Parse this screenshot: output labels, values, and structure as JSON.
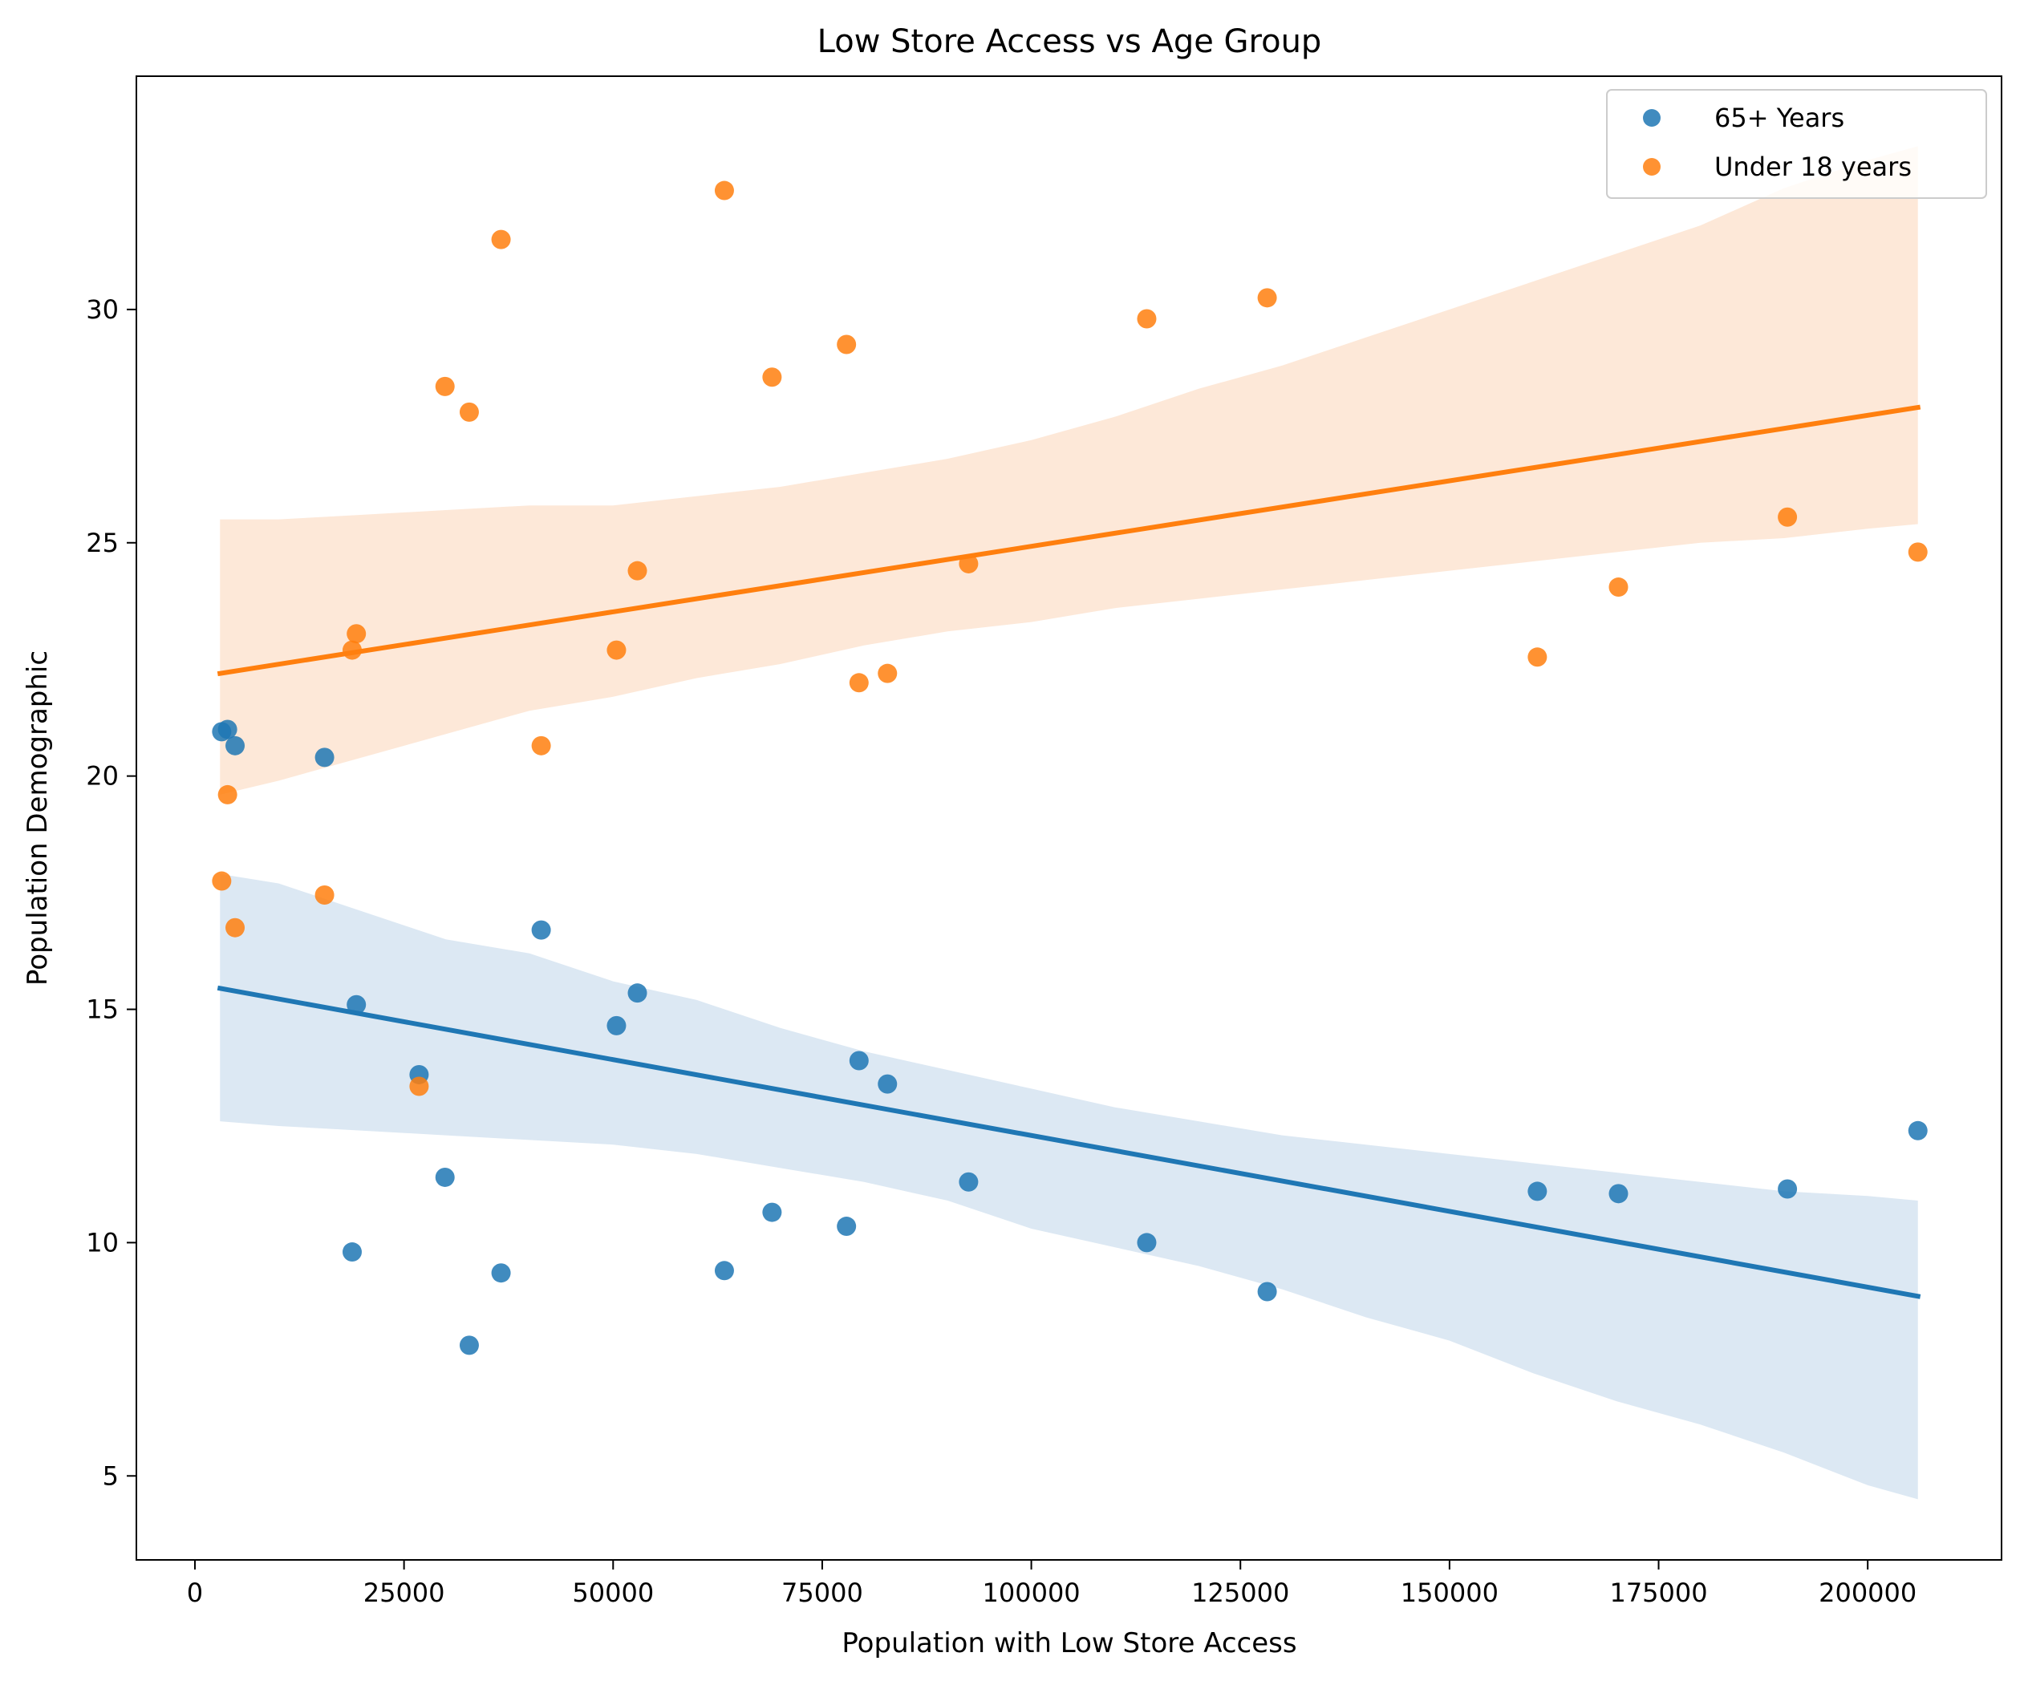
{
  "chart_data": {
    "type": "scatter",
    "title": "Low Store Access vs Age Group",
    "xlabel": "Population with Low Store Access",
    "ylabel": "Population Demographic",
    "xlim": [
      -7000,
      216000
    ],
    "ylim": [
      3.2,
      35.0
    ],
    "xticks": [
      0,
      25000,
      50000,
      75000,
      100000,
      125000,
      150000,
      175000,
      200000
    ],
    "yticks": [
      5,
      10,
      15,
      20,
      25,
      30
    ],
    "grid": false,
    "legend_position": "top-right",
    "series": [
      {
        "name": "65+ Years",
        "color": "#1f77b4",
        "band_color": "#dce8f3",
        "x": [
          3200,
          3900,
          4800,
          15500,
          18800,
          19300,
          26800,
          29900,
          32800,
          36600,
          41400,
          50400,
          52900,
          63300,
          69000,
          77900,
          79400,
          82800,
          92500,
          113800,
          128200,
          160500,
          170200,
          190400,
          206000
        ],
        "y": [
          20.95,
          21.0,
          20.65,
          20.4,
          9.8,
          15.1,
          13.6,
          11.4,
          7.8,
          9.35,
          16.7,
          14.65,
          15.35,
          9.4,
          10.65,
          10.35,
          13.9,
          13.4,
          11.3,
          10.0,
          8.95,
          11.1,
          11.05,
          11.15,
          12.4
        ],
        "fit": {
          "x": [
            3000,
            206000
          ],
          "y": [
            15.45,
            8.85
          ]
        },
        "band": {
          "x": [
            3000,
            10000,
            20000,
            30000,
            40000,
            50000,
            60000,
            70000,
            80000,
            90000,
            100000,
            110000,
            120000,
            130000,
            140000,
            150000,
            160000,
            170000,
            180000,
            190000,
            200000,
            206000
          ],
          "upper": [
            17.9,
            17.7,
            17.1,
            16.5,
            16.2,
            15.6,
            15.2,
            14.6,
            14.1,
            13.7,
            13.3,
            12.9,
            12.6,
            12.3,
            12.1,
            11.9,
            11.7,
            11.5,
            11.3,
            11.1,
            11.0,
            10.9
          ],
          "lower": [
            12.6,
            12.5,
            12.4,
            12.3,
            12.2,
            12.1,
            11.9,
            11.6,
            11.3,
            10.9,
            10.3,
            9.9,
            9.5,
            9.0,
            8.4,
            7.9,
            7.2,
            6.6,
            6.1,
            5.5,
            4.8,
            4.5
          ]
        }
      },
      {
        "name": "Under 18 years",
        "color": "#ff7f0e",
        "band_color": "#fde8d8",
        "x": [
          3200,
          3900,
          4800,
          15500,
          18800,
          19300,
          26800,
          29900,
          32800,
          36600,
          41400,
          50400,
          52900,
          63300,
          69000,
          77900,
          79400,
          82800,
          92500,
          113800,
          128200,
          160500,
          170200,
          190400,
          206000
        ],
        "y": [
          17.75,
          19.6,
          16.75,
          17.45,
          22.7,
          23.05,
          13.35,
          28.35,
          27.8,
          31.5,
          20.65,
          22.7,
          24.4,
          32.55,
          28.55,
          29.25,
          22.0,
          22.2,
          24.55,
          29.8,
          30.25,
          22.55,
          24.05,
          25.55,
          24.8
        ],
        "fit": {
          "x": [
            3000,
            206000
          ],
          "y": [
            22.2,
            27.9
          ]
        },
        "band": {
          "x": [
            3000,
            10000,
            20000,
            30000,
            40000,
            50000,
            60000,
            70000,
            80000,
            90000,
            100000,
            110000,
            120000,
            130000,
            140000,
            150000,
            160000,
            170000,
            180000,
            190000,
            200000,
            206000
          ],
          "upper": [
            25.5,
            25.5,
            25.6,
            25.7,
            25.8,
            25.8,
            26.0,
            26.2,
            26.5,
            26.8,
            27.2,
            27.7,
            28.3,
            28.8,
            29.4,
            30.0,
            30.6,
            31.2,
            31.8,
            32.6,
            33.2,
            33.5
          ],
          "lower": [
            19.6,
            19.9,
            20.4,
            20.9,
            21.4,
            21.7,
            22.1,
            22.4,
            22.8,
            23.1,
            23.3,
            23.6,
            23.8,
            24.0,
            24.2,
            24.4,
            24.6,
            24.8,
            25.0,
            25.1,
            25.3,
            25.4
          ]
        }
      }
    ]
  }
}
